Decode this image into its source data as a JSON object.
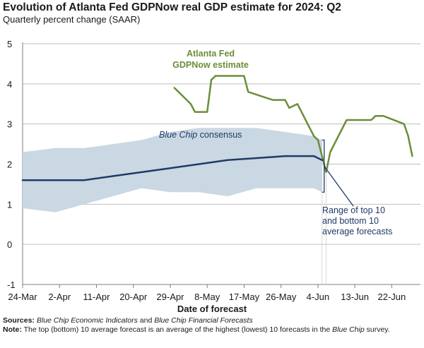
{
  "header": {
    "title": "Evolution of Atlanta Fed GDPNow real GDP estimate for 2024: Q2",
    "subtitle": "Quarterly percent change (SAAR)"
  },
  "colors": {
    "gdpnow": "#6b8e3a",
    "consensus": "#1f3a68",
    "band": "#c9d8e2",
    "grid": "#bfbfbf",
    "bracket": "#1f3a68"
  },
  "chart_data": {
    "type": "line",
    "title": "Evolution of Atlanta Fed GDPNow real GDP estimate for 2024: Q2",
    "subtitle": "Quarterly percent change (SAAR)",
    "xlabel": "Date of forecast",
    "ylabel": "",
    "ylim": [
      -1,
      5
    ],
    "yticks": [
      "-1",
      "0",
      "1",
      "2",
      "3",
      "4",
      "5"
    ],
    "xticks": [
      "24-Mar",
      "2-Apr",
      "11-Apr",
      "20-Apr",
      "29-Apr",
      "8-May",
      "17-May",
      "26-May",
      "4-Jun",
      "13-Jun",
      "22-Jun"
    ],
    "grid": true,
    "series": [
      {
        "name": "Atlanta Fed GDPNow estimate",
        "label_lines": [
          "Atlanta Fed",
          "GDPNow estimate"
        ],
        "x": [
          "2024-04-30",
          "2024-05-01",
          "2024-05-02",
          "2024-05-03",
          "2024-05-04",
          "2024-05-05",
          "2024-05-08",
          "2024-05-09",
          "2024-05-10",
          "2024-05-13",
          "2024-05-15",
          "2024-05-16",
          "2024-05-17",
          "2024-05-18",
          "2024-05-24",
          "2024-05-25",
          "2024-05-27",
          "2024-05-28",
          "2024-05-30",
          "2024-05-31",
          "2024-06-01",
          "2024-06-02",
          "2024-06-03",
          "2024-06-04",
          "2024-06-06",
          "2024-06-07",
          "2024-06-11",
          "2024-06-12",
          "2024-06-14",
          "2024-06-17",
          "2024-06-18",
          "2024-06-20",
          "2024-06-25",
          "2024-06-26",
          "2024-06-27"
        ],
        "values": [
          3.9,
          3.8,
          3.7,
          3.6,
          3.5,
          3.3,
          3.3,
          4.1,
          4.2,
          4.2,
          4.2,
          4.2,
          4.2,
          3.8,
          3.6,
          3.6,
          3.6,
          3.4,
          3.5,
          3.3,
          3.1,
          2.9,
          2.7,
          2.6,
          1.8,
          2.3,
          3.1,
          3.1,
          3.1,
          3.1,
          3.2,
          3.2,
          3.0,
          2.7,
          2.2
        ]
      },
      {
        "name": "Blue Chip consensus",
        "label_italic": "Blue Chip",
        "label_rest": " consensus",
        "x": [
          "2024-03-24",
          "2024-04-03",
          "2024-04-08",
          "2024-04-15",
          "2024-04-22",
          "2024-04-29",
          "2024-05-06",
          "2024-05-13",
          "2024-05-20",
          "2024-05-27",
          "2024-06-03",
          "2024-06-05"
        ],
        "values": [
          1.6,
          1.6,
          1.6,
          1.7,
          1.8,
          1.9,
          2.0,
          2.1,
          2.15,
          2.2,
          2.2,
          2.1
        ]
      }
    ],
    "band": {
      "name": "Range of top 10 and bottom 10 average forecasts",
      "x": [
        "2024-03-24",
        "2024-04-01",
        "2024-04-08",
        "2024-04-15",
        "2024-04-22",
        "2024-04-29",
        "2024-05-06",
        "2024-05-13",
        "2024-05-20",
        "2024-05-27",
        "2024-06-03",
        "2024-06-05"
      ],
      "upper": [
        2.3,
        2.4,
        2.4,
        2.5,
        2.6,
        2.8,
        2.9,
        2.9,
        2.9,
        2.8,
        2.7,
        2.6
      ],
      "lower": [
        0.9,
        0.8,
        1.0,
        1.2,
        1.4,
        1.3,
        1.3,
        1.2,
        1.4,
        1.4,
        1.4,
        1.3
      ]
    },
    "annotations": {
      "bracket_label": [
        "Range of top 10",
        "and bottom 10",
        "average forecasts"
      ]
    }
  },
  "footer": {
    "sources_label": "Sources:",
    "sources_italic_1": "Blue Chip Economic Indicators",
    "sources_and": " and ",
    "sources_italic_2": "Blue Chip Financial Forecasts",
    "note_label": "Note:",
    "note_text": " The top (bottom) 10 average forecast is an average of the highest (lowest) 10 forecasts in the ",
    "note_italic": "Blue Chip",
    "note_end": " survey."
  }
}
